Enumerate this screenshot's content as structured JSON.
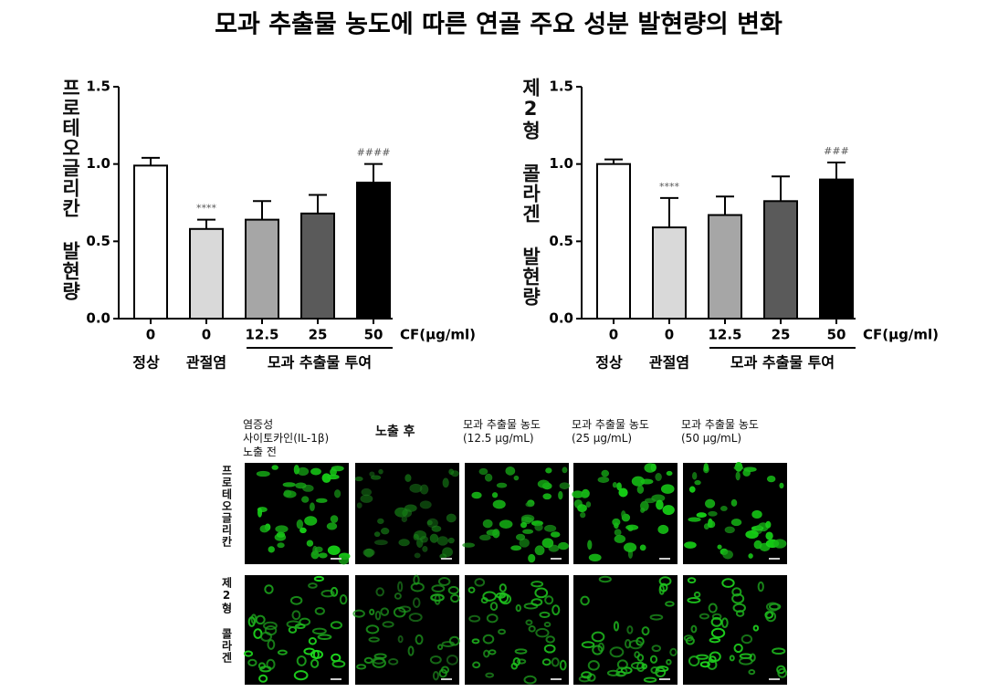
{
  "title": "모과 추출물 농도에 따른 연골 주요 성분 발현량의 변화",
  "chart_data": [
    {
      "type": "bar",
      "y_label": "프로테오글리칸 발현량",
      "categories": [
        "0",
        "0",
        "12.5",
        "25",
        "50"
      ],
      "x_unit": "CF(μg/ml)",
      "group_labels": [
        "정상",
        "관절염",
        "모과 추출물 투여"
      ],
      "values": [
        0.99,
        0.58,
        0.64,
        0.68,
        0.88
      ],
      "errors": [
        0.05,
        0.06,
        0.12,
        0.12,
        0.12
      ],
      "annotations": [
        null,
        "****",
        null,
        null,
        "####"
      ],
      "colors": [
        "#ffffff",
        "#d9d9d9",
        "#a6a6a6",
        "#5a5a5a",
        "#000000"
      ],
      "ylim": [
        0,
        1.5
      ],
      "yticks": [
        {
          "value": 0,
          "label": "0.0"
        },
        {
          "value": 0.5,
          "label": "0.5"
        },
        {
          "value": 1,
          "label": "1.0"
        },
        {
          "value": 1.5,
          "label": "1.5"
        }
      ]
    },
    {
      "type": "bar",
      "y_label": "제2형 콜라겐 발현량",
      "categories": [
        "0",
        "0",
        "12.5",
        "25",
        "50"
      ],
      "x_unit": "CF(μg/ml)",
      "group_labels": [
        "정상",
        "관절염",
        "모과 추출물 투여"
      ],
      "values": [
        1.0,
        0.59,
        0.67,
        0.76,
        0.9
      ],
      "errors": [
        0.03,
        0.19,
        0.12,
        0.16,
        0.11
      ],
      "annotations": [
        null,
        "****",
        null,
        null,
        "###"
      ],
      "colors": [
        "#ffffff",
        "#d9d9d9",
        "#a6a6a6",
        "#5a5a5a",
        "#000000"
      ],
      "ylim": [
        0,
        1.5
      ],
      "yticks": [
        {
          "value": 0,
          "label": "0.0"
        },
        {
          "value": 0.5,
          "label": "0.5"
        },
        {
          "value": 1,
          "label": "1.0"
        },
        {
          "value": 1.5,
          "label": "1.5"
        }
      ]
    }
  ],
  "images": {
    "columns": [
      "염증성\n사이토카인(IL-1β)\n노출 전",
      "노출 후",
      "모과 추출물 농도\n(12.5 μg/mL)",
      "모과 추출물 농도\n(25 μg/mL)",
      "모과 추출물 농도\n(50 μg/mL)"
    ],
    "rows": [
      "프로테오글리칸",
      "제2형 콜라겐"
    ]
  }
}
